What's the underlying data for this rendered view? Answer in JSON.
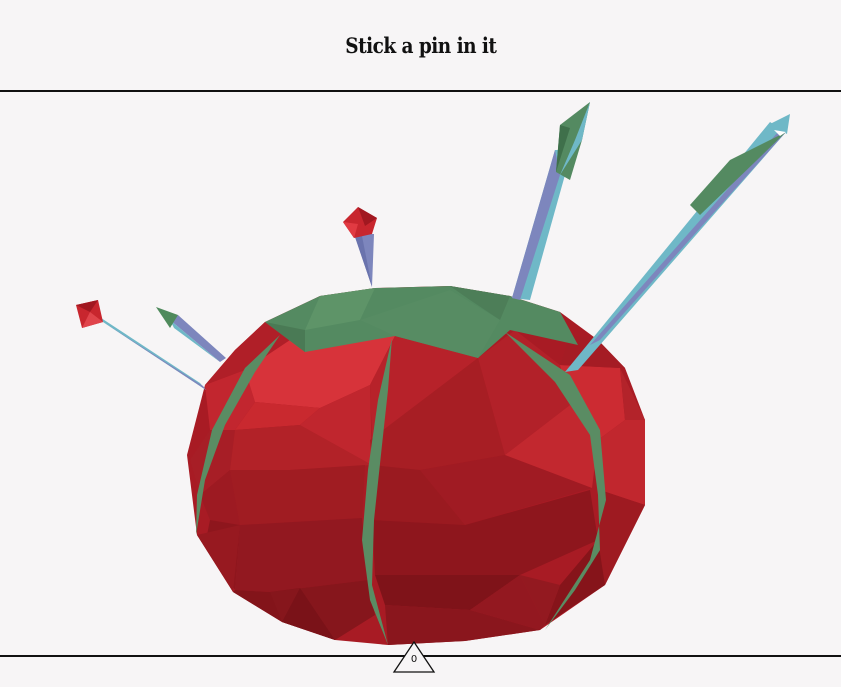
{
  "header": {
    "title": "Stick a pin in it"
  },
  "counter": {
    "value": "0"
  },
  "colors": {
    "background": "#f7f5f6",
    "cushion_red": "#c8252d",
    "leaf_green": "#548a61",
    "pin_blue": "#6fb8c7",
    "pin_purple": "#7d86bd"
  },
  "icons": {
    "counter_shape": "triangle"
  }
}
